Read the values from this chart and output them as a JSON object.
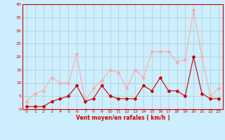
{
  "title": "",
  "xlabel": "Vent moyen/en rafales ( km/h )",
  "x": [
    0,
    1,
    2,
    3,
    4,
    5,
    6,
    7,
    8,
    9,
    10,
    11,
    12,
    13,
    14,
    15,
    16,
    17,
    18,
    19,
    20,
    21,
    22,
    23
  ],
  "wind_mean": [
    1,
    1,
    1,
    3,
    4,
    5,
    9,
    3,
    4,
    9,
    5,
    4,
    4,
    4,
    9,
    7,
    12,
    7,
    7,
    5,
    20,
    6,
    4,
    4
  ],
  "wind_gust": [
    3,
    6,
    7,
    12,
    10,
    10,
    21,
    3,
    8,
    11,
    15,
    14,
    8,
    15,
    12,
    22,
    22,
    22,
    18,
    19,
    38,
    20,
    5,
    8
  ],
  "ylim": [
    0,
    40
  ],
  "yticks": [
    0,
    5,
    10,
    15,
    20,
    25,
    30,
    35,
    40
  ],
  "color_mean": "#cc0000",
  "color_gust": "#ffaaaa",
  "bg_color": "#cceeff",
  "grid_color": "#aacccc",
  "label_color": "#cc0000",
  "marker": "D",
  "markersize": 2,
  "linewidth": 0.8
}
